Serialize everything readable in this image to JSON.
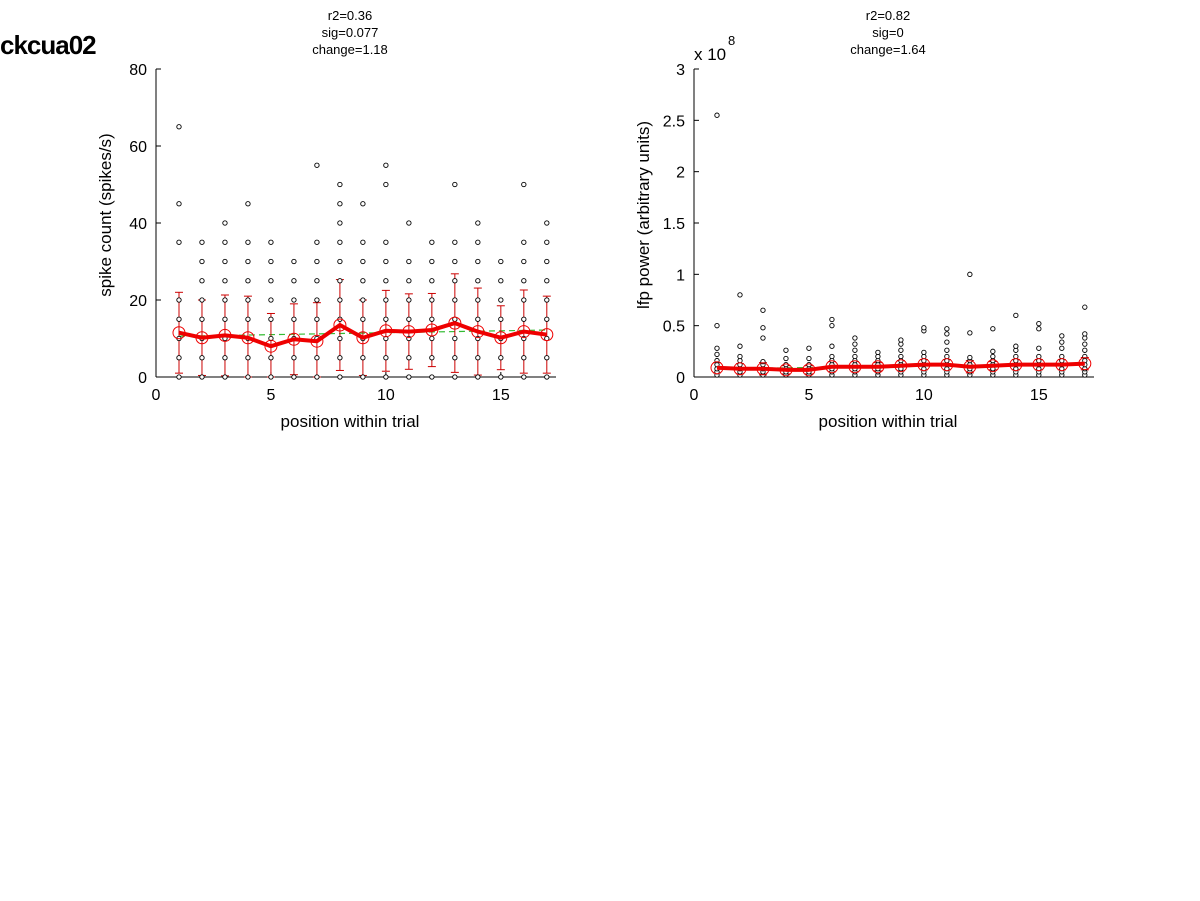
{
  "figure_title": "ckcua02",
  "chart_data": [
    {
      "type": "scatter",
      "title_lines": [
        "r2=0.36",
        "sig=0.077",
        "change=1.18"
      ],
      "xlabel": "position within trial",
      "ylabel": "spike count (spikes/s)",
      "xlim": [
        0,
        17.4
      ],
      "ylim": [
        0,
        80
      ],
      "xticks": [
        0,
        5,
        10,
        15
      ],
      "yticks": [
        0,
        20,
        40,
        60,
        80
      ],
      "tick_labels_x": [
        "0",
        "5",
        "10",
        "15"
      ],
      "tick_labels_y": [
        "0",
        "20",
        "40",
        "60",
        "80"
      ],
      "multiplier_label": "",
      "x": [
        1,
        2,
        3,
        4,
        5,
        6,
        7,
        8,
        9,
        10,
        11,
        12,
        13,
        14,
        15,
        16,
        17
      ],
      "trial_values": [
        [
          0,
          5,
          10,
          15,
          20,
          35,
          45,
          65
        ],
        [
          0,
          5,
          10,
          15,
          20,
          25,
          30,
          35
        ],
        [
          0,
          5,
          10,
          15,
          20,
          25,
          30,
          35,
          40
        ],
        [
          0,
          5,
          10,
          15,
          20,
          25,
          30,
          35,
          45
        ],
        [
          0,
          5,
          10,
          15,
          20,
          25,
          30,
          35
        ],
        [
          0,
          5,
          10,
          15,
          20,
          25,
          30
        ],
        [
          0,
          5,
          10,
          15,
          20,
          25,
          30,
          35,
          55
        ],
        [
          0,
          5,
          10,
          15,
          20,
          25,
          30,
          35,
          40,
          45,
          50
        ],
        [
          0,
          5,
          10,
          15,
          20,
          25,
          30,
          35,
          45
        ],
        [
          0,
          5,
          10,
          15,
          20,
          25,
          30,
          35,
          50,
          55
        ],
        [
          0,
          5,
          10,
          15,
          20,
          25,
          30,
          40
        ],
        [
          0,
          5,
          10,
          15,
          20,
          25,
          30,
          35
        ],
        [
          0,
          5,
          10,
          15,
          20,
          25,
          30,
          35,
          50
        ],
        [
          0,
          5,
          10,
          15,
          20,
          25,
          30,
          35,
          40
        ],
        [
          0,
          5,
          10,
          15,
          20,
          25,
          30
        ],
        [
          0,
          5,
          10,
          15,
          20,
          25,
          30,
          35,
          50
        ],
        [
          0,
          5,
          10,
          15,
          20,
          25,
          30,
          35,
          40
        ]
      ],
      "mean": [
        11.5,
        10.2,
        10.8,
        10.2,
        8.0,
        9.8,
        9.3,
        13.5,
        10.2,
        12.0,
        11.8,
        12.2,
        14.0,
        11.8,
        10.2,
        11.8,
        11.0
      ],
      "error": [
        10.5,
        9.8,
        10.5,
        10.8,
        8.5,
        9.2,
        10.0,
        11.8,
        9.8,
        10.5,
        9.8,
        9.5,
        12.8,
        11.3,
        8.3,
        10.8,
        10.0
      ],
      "fit_line": [
        10.6,
        10.7,
        10.8,
        10.9,
        11.0,
        11.1,
        11.2,
        11.3,
        11.4,
        11.5,
        11.6,
        11.7,
        11.8,
        11.9,
        12.0,
        12.1,
        12.2
      ],
      "colors": {
        "points": "#000000",
        "mean": "#ee0000",
        "error": "#cc0000",
        "fit": "#33bb33"
      }
    },
    {
      "type": "scatter",
      "title_lines": [
        "r2=0.82",
        "sig=0",
        "change=1.64"
      ],
      "xlabel": "position within trial",
      "ylabel": "lfp power (arbitrary units)",
      "xlim": [
        0,
        17.4
      ],
      "ylim": [
        0,
        3
      ],
      "xticks": [
        0,
        5,
        10,
        15
      ],
      "yticks": [
        0,
        0.5,
        1,
        1.5,
        2,
        2.5,
        3
      ],
      "tick_labels_x": [
        "0",
        "5",
        "10",
        "15"
      ],
      "tick_labels_y": [
        "0",
        "0.5",
        "1",
        "1.5",
        "2",
        "2.5",
        "3"
      ],
      "multiplier_label": "x 10",
      "multiplier_exponent": "8",
      "x": [
        1,
        2,
        3,
        4,
        5,
        6,
        7,
        8,
        9,
        10,
        11,
        12,
        13,
        14,
        15,
        16,
        17
      ],
      "trial_values": [
        [
          0.02,
          0.05,
          0.08,
          0.12,
          0.16,
          0.22,
          0.28,
          0.5,
          2.55
        ],
        [
          0.02,
          0.05,
          0.08,
          0.12,
          0.16,
          0.2,
          0.3,
          0.8
        ],
        [
          0.02,
          0.05,
          0.08,
          0.12,
          0.15,
          0.38,
          0.48,
          0.65
        ],
        [
          0.02,
          0.05,
          0.08,
          0.12,
          0.18,
          0.26
        ],
        [
          0.02,
          0.05,
          0.08,
          0.12,
          0.18,
          0.28
        ],
        [
          0.02,
          0.05,
          0.08,
          0.12,
          0.16,
          0.2,
          0.3,
          0.5,
          0.56
        ],
        [
          0.02,
          0.05,
          0.08,
          0.12,
          0.16,
          0.2,
          0.26,
          0.32,
          0.38
        ],
        [
          0.02,
          0.05,
          0.08,
          0.12,
          0.16,
          0.2,
          0.24
        ],
        [
          0.02,
          0.05,
          0.08,
          0.12,
          0.16,
          0.2,
          0.26,
          0.32,
          0.36
        ],
        [
          0.02,
          0.05,
          0.08,
          0.12,
          0.16,
          0.2,
          0.24,
          0.45,
          0.48
        ],
        [
          0.02,
          0.05,
          0.08,
          0.12,
          0.16,
          0.2,
          0.26,
          0.34,
          0.42,
          0.47
        ],
        [
          0.02,
          0.05,
          0.08,
          0.12,
          0.16,
          0.19,
          0.43,
          1.0
        ],
        [
          0.02,
          0.05,
          0.08,
          0.12,
          0.16,
          0.2,
          0.25,
          0.47
        ],
        [
          0.02,
          0.05,
          0.08,
          0.12,
          0.16,
          0.2,
          0.26,
          0.3,
          0.6
        ],
        [
          0.02,
          0.05,
          0.08,
          0.12,
          0.16,
          0.2,
          0.28,
          0.47,
          0.52
        ],
        [
          0.02,
          0.05,
          0.08,
          0.12,
          0.16,
          0.2,
          0.28,
          0.34,
          0.4
        ],
        [
          0.02,
          0.05,
          0.08,
          0.12,
          0.16,
          0.2,
          0.26,
          0.32,
          0.38,
          0.42,
          0.68
        ]
      ],
      "mean": [
        0.09,
        0.08,
        0.08,
        0.07,
        0.07,
        0.1,
        0.1,
        0.1,
        0.11,
        0.12,
        0.12,
        0.1,
        0.11,
        0.12,
        0.12,
        0.12,
        0.13
      ],
      "error": [
        0.05,
        0.05,
        0.06,
        0.04,
        0.04,
        0.05,
        0.05,
        0.04,
        0.05,
        0.05,
        0.05,
        0.06,
        0.04,
        0.05,
        0.05,
        0.05,
        0.06
      ],
      "fit_line": [
        0.08,
        0.083,
        0.086,
        0.089,
        0.092,
        0.095,
        0.098,
        0.101,
        0.104,
        0.107,
        0.11,
        0.113,
        0.116,
        0.119,
        0.122,
        0.125,
        0.128
      ],
      "colors": {
        "points": "#000000",
        "mean": "#ee0000",
        "error": "#cc0000",
        "fit": "#33bb33"
      }
    }
  ]
}
